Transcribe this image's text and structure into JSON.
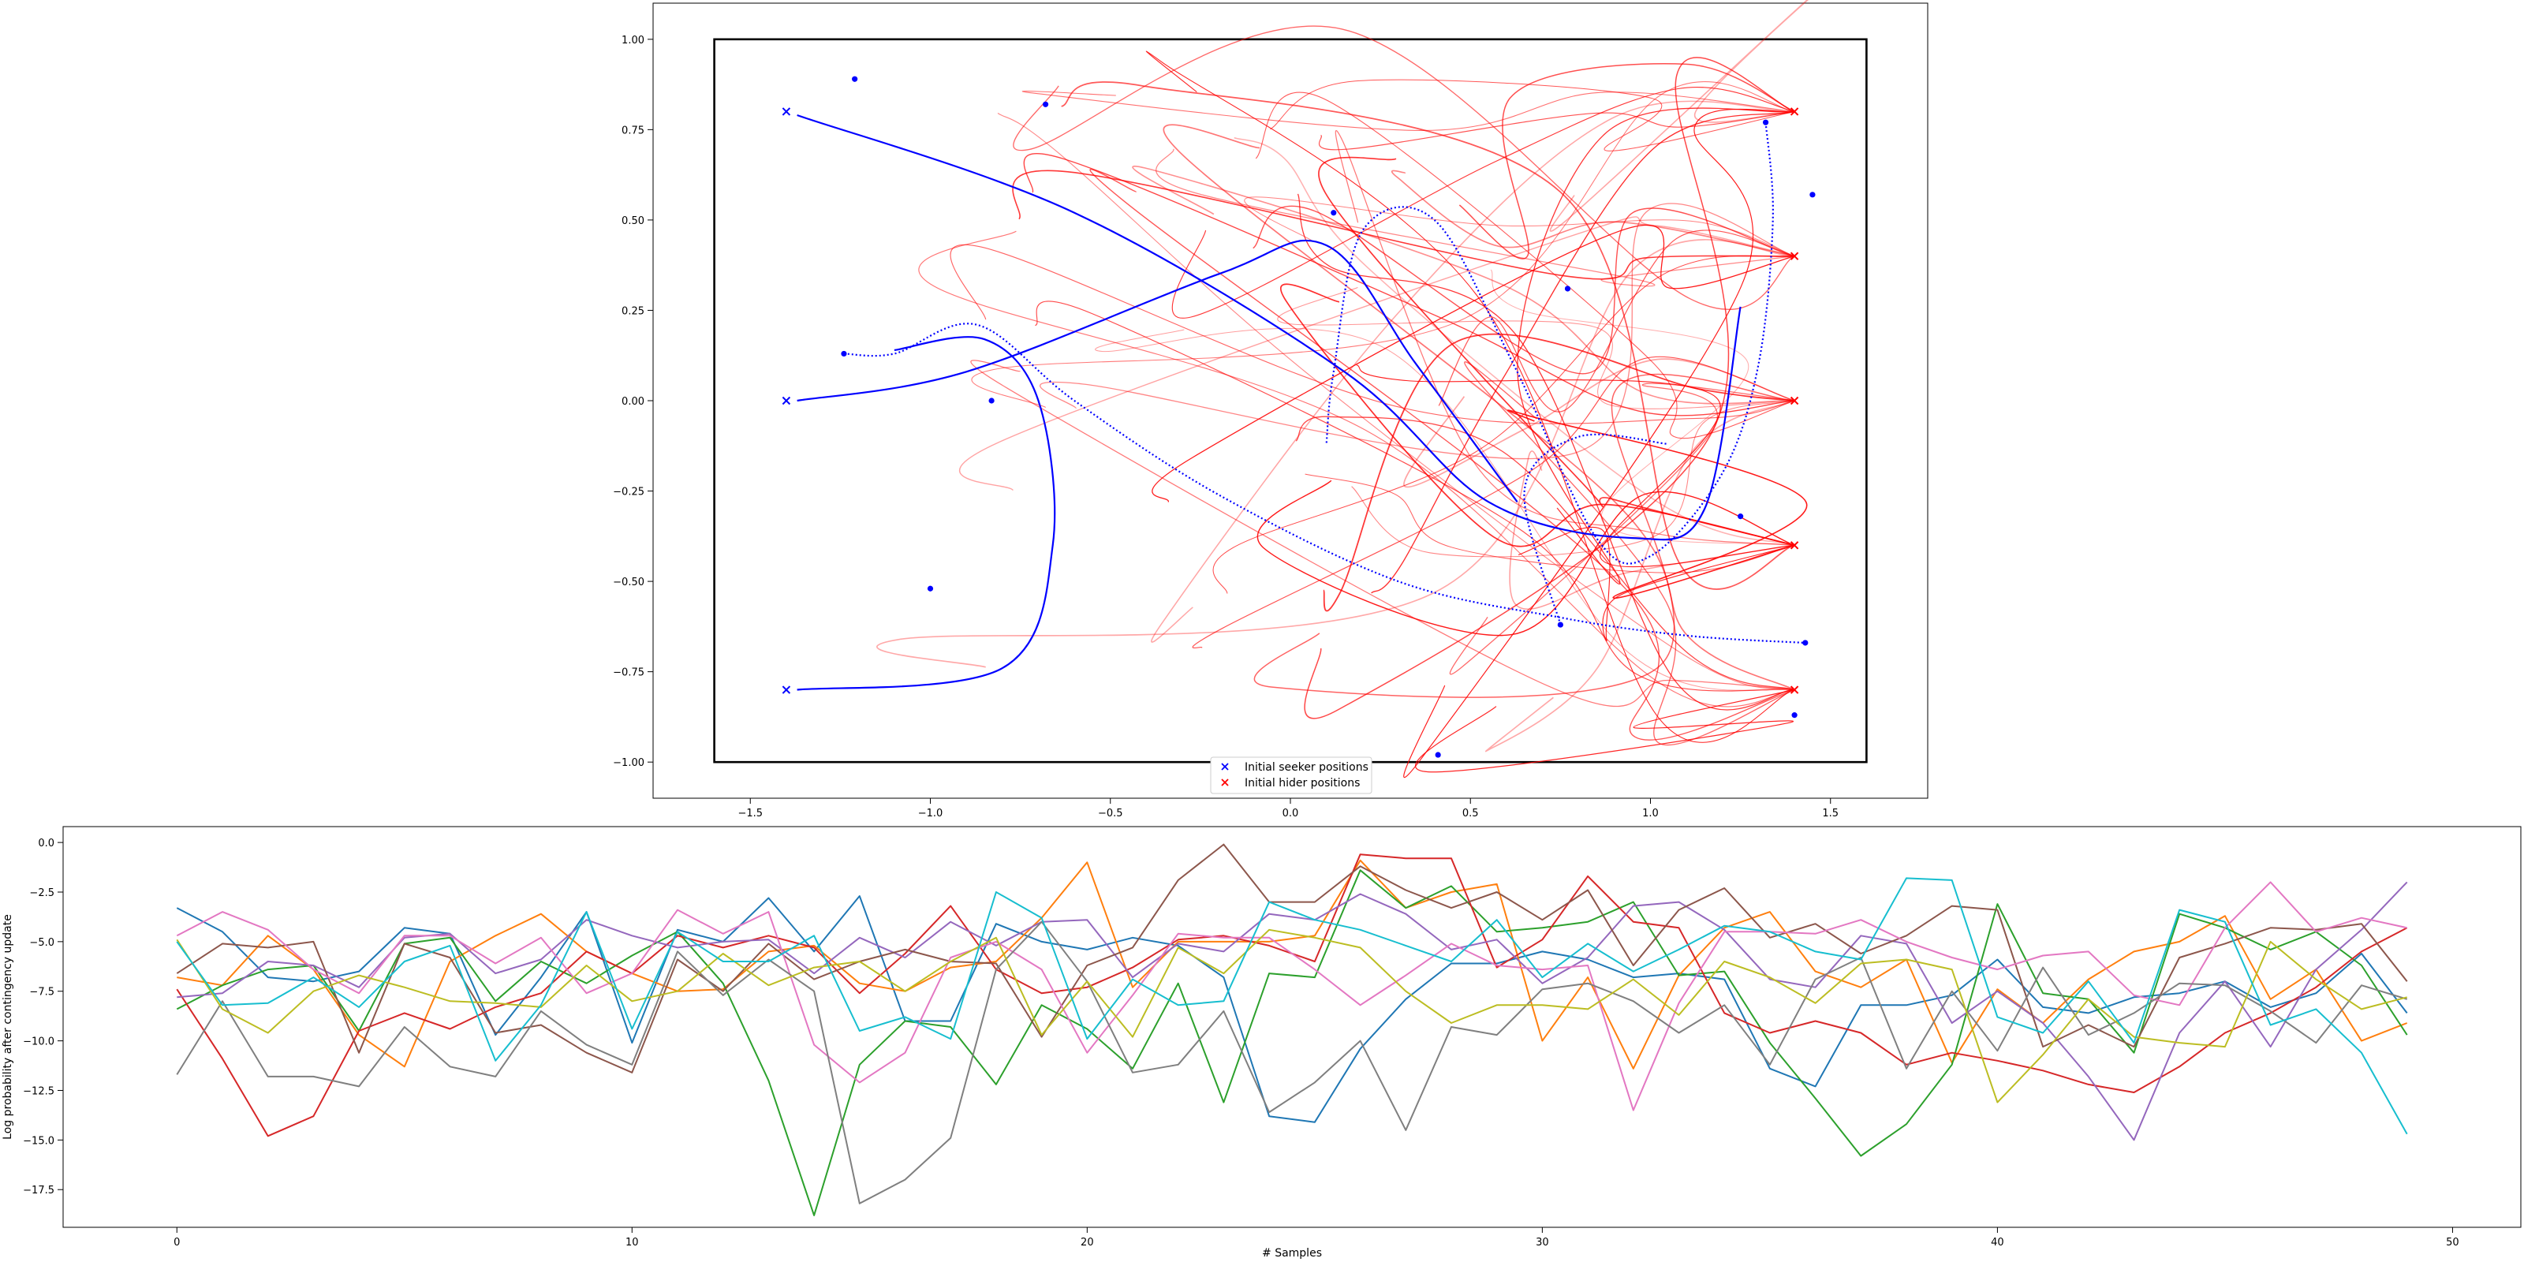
{
  "chart_data": [
    {
      "type": "scatter",
      "title": "",
      "xlabel": "",
      "ylabel": "",
      "xlim": [
        -1.77,
        1.77
      ],
      "ylim": [
        -1.1,
        1.1
      ],
      "xticks": [
        "−1.5",
        "−1.0",
        "−0.5",
        "0.0",
        "0.5",
        "1.0",
        "1.5"
      ],
      "xtick_values": [
        -1.5,
        -1.0,
        -0.5,
        0.0,
        0.5,
        1.0,
        1.5
      ],
      "yticks": [
        "1.00",
        "0.75",
        "0.50",
        "0.25",
        "0.00",
        "−0.25",
        "−0.50",
        "−0.75",
        "−1.00"
      ],
      "ytick_values": [
        1.0,
        0.75,
        0.5,
        0.25,
        0.0,
        -0.25,
        -0.5,
        -0.75,
        -1.0
      ],
      "boundary_box": {
        "x0": -1.6,
        "y0": -1.0,
        "x1": 1.6,
        "y1": 1.0
      },
      "legend": {
        "placement": "lower-center",
        "entries": [
          {
            "label": "Initial seeker positions",
            "color": "#0000ff",
            "marker": "x"
          },
          {
            "label": "Initial hider positions",
            "color": "#ff0000",
            "marker": "x"
          }
        ]
      },
      "seeker_color": "#0000ff",
      "hider_color": "#ff0000",
      "seeker_positions": [
        [
          -1.4,
          0.8
        ],
        [
          -1.4,
          0.0
        ],
        [
          -1.4,
          -0.8
        ]
      ],
      "hider_positions": [
        [
          1.4,
          0.8
        ],
        [
          1.4,
          0.4
        ],
        [
          1.4,
          0.0
        ],
        [
          1.4,
          -0.4
        ],
        [
          1.4,
          -0.8
        ]
      ],
      "target_dots": [
        [
          -1.21,
          0.89
        ],
        [
          -0.68,
          0.82
        ],
        [
          0.12,
          0.52
        ],
        [
          0.77,
          0.31
        ],
        [
          -1.24,
          0.13
        ],
        [
          -0.83,
          0.0
        ],
        [
          1.32,
          0.77
        ],
        [
          1.45,
          0.57
        ],
        [
          1.25,
          -0.32
        ],
        [
          -1.0,
          -0.52
        ],
        [
          0.75,
          -0.62
        ],
        [
          1.43,
          -0.67
        ],
        [
          1.4,
          -0.87
        ],
        [
          0.41,
          -0.98
        ]
      ],
      "seeker_paths_solid": [
        [
          [
            -1.37,
            0.79
          ],
          [
            -0.6,
            0.52
          ],
          [
            0.15,
            0.08
          ],
          [
            0.55,
            -0.28
          ],
          [
            0.95,
            -0.38
          ],
          [
            1.15,
            -0.3
          ],
          [
            1.25,
            0.26
          ]
        ],
        [
          [
            -1.37,
            0.0
          ],
          [
            -0.9,
            0.08
          ],
          [
            -0.2,
            0.35
          ],
          [
            0.1,
            0.43
          ],
          [
            0.35,
            0.1
          ],
          [
            0.63,
            -0.28
          ]
        ],
        [
          [
            -1.37,
            -0.8
          ],
          [
            -0.8,
            -0.74
          ],
          [
            -0.66,
            -0.4
          ],
          [
            -0.7,
            0.0
          ],
          [
            -0.85,
            0.17
          ],
          [
            -1.1,
            0.14
          ]
        ]
      ],
      "seeker_paths_dotted": [
        [
          [
            1.32,
            0.77
          ],
          [
            1.34,
            0.5
          ],
          [
            1.3,
            0.1
          ],
          [
            1.2,
            -0.2
          ],
          [
            1.0,
            -0.43
          ],
          [
            0.85,
            -0.38
          ],
          [
            0.62,
            0.1
          ],
          [
            0.4,
            0.5
          ],
          [
            0.2,
            0.47
          ],
          [
            0.12,
            0.08
          ],
          [
            0.1,
            -0.12
          ]
        ],
        [
          [
            -1.24,
            0.13
          ],
          [
            -1.1,
            0.13
          ],
          [
            -0.87,
            0.21
          ],
          [
            -0.6,
            0.0
          ],
          [
            -0.2,
            -0.26
          ],
          [
            0.3,
            -0.5
          ],
          [
            0.75,
            -0.6
          ],
          [
            1.1,
            -0.65
          ],
          [
            1.43,
            -0.67
          ]
        ],
        [
          [
            0.75,
            -0.62
          ],
          [
            0.65,
            -0.25
          ],
          [
            0.8,
            -0.1
          ],
          [
            1.05,
            -0.12
          ]
        ]
      ],
      "hider_path_count": 60
    },
    {
      "type": "line",
      "title": "",
      "xlabel": "# Samples",
      "ylabel": "Log probability after contingency update",
      "xlim": [
        -2.5,
        51.5
      ],
      "ylim": [
        -19.4,
        0.8
      ],
      "xticks": [
        "0",
        "10",
        "20",
        "30",
        "40",
        "50"
      ],
      "xtick_values": [
        0,
        10,
        20,
        30,
        40,
        50
      ],
      "yticks": [
        "0.0",
        "−2.5",
        "−5.0",
        "−7.5",
        "−10.0",
        "−12.5",
        "−15.0",
        "−17.5"
      ],
      "ytick_values": [
        0,
        -2.5,
        -5,
        -7.5,
        -10,
        -12.5,
        -15,
        -17.5
      ],
      "x": [
        0,
        1,
        2,
        3,
        4,
        5,
        6,
        7,
        8,
        9,
        10,
        11,
        12,
        13,
        14,
        15,
        16,
        17,
        18,
        19,
        20,
        21,
        22,
        23,
        24,
        25,
        26,
        27,
        28,
        29,
        30,
        31,
        32,
        33,
        34,
        35,
        36,
        37,
        38,
        39,
        40,
        41,
        42,
        43,
        44,
        45,
        46,
        47,
        48,
        49
      ],
      "series": [
        {
          "color": "#1f77b4",
          "values": [
            -3.3,
            -4.5,
            -6.8,
            -7.0,
            -6.5,
            -4.3,
            -4.6,
            -9.7,
            -6.8,
            -3.5,
            -10.1,
            -4.4,
            -5.0,
            -2.8,
            -5.5,
            -2.7,
            -9.0,
            -9.0,
            -4.1,
            -5.0,
            -5.4,
            -4.8,
            -5.2,
            -6.8,
            -13.8,
            -14.1,
            -10.4,
            -7.9,
            -6.1,
            -6.1,
            -5.5,
            -5.9,
            -6.8,
            -6.6,
            -6.9,
            -11.4,
            -12.3,
            -8.2,
            -8.2,
            -7.7,
            -5.9,
            -8.3,
            -8.6,
            -7.8,
            -7.6,
            -7.0,
            -8.3,
            -7.6,
            -5.6,
            -8.6
          ]
        },
        {
          "color": "#ff7f0e",
          "values": [
            -6.8,
            -7.2,
            -4.7,
            -6.4,
            -9.7,
            -11.3,
            -6.0,
            -4.7,
            -3.6,
            -5.5,
            -6.6,
            -7.5,
            -7.4,
            -5.5,
            -5.2,
            -7.1,
            -7.5,
            -6.3,
            -6.0,
            -3.8,
            -1.0,
            -7.3,
            -5.0,
            -5.0,
            -5.0,
            -4.7,
            -0.9,
            -3.3,
            -2.5,
            -2.1,
            -10.0,
            -6.8,
            -11.4,
            -6.7,
            -4.3,
            -3.5,
            -6.5,
            -7.3,
            -5.9,
            -11.1,
            -7.4,
            -9.1,
            -6.9,
            -5.5,
            -5.0,
            -3.7,
            -7.9,
            -6.4,
            -10.0,
            -9.1
          ]
        },
        {
          "color": "#2ca02c",
          "values": [
            -8.4,
            -7.2,
            -6.4,
            -6.2,
            -9.5,
            -5.1,
            -4.8,
            -8.0,
            -6.0,
            -7.1,
            -5.7,
            -4.5,
            -7.1,
            -12.0,
            -18.8,
            -11.2,
            -9.0,
            -9.3,
            -12.2,
            -8.2,
            -9.4,
            -11.4,
            -7.1,
            -13.1,
            -6.6,
            -6.8,
            -1.4,
            -3.3,
            -2.2,
            -4.5,
            -4.3,
            -4.0,
            -3.0,
            -6.7,
            -6.5,
            -10.1,
            -12.9,
            -15.8,
            -14.2,
            -11.2,
            -3.1,
            -7.6,
            -7.9,
            -10.6,
            -3.6,
            -4.3,
            -5.4,
            -4.5,
            -6.2,
            -9.7
          ]
        },
        {
          "color": "#d62728",
          "values": [
            -7.4,
            -10.9,
            -14.8,
            -13.8,
            -9.5,
            -8.6,
            -9.4,
            -8.3,
            -7.6,
            -5.5,
            -6.6,
            -4.7,
            -5.3,
            -4.7,
            -5.3,
            -7.6,
            -5.6,
            -3.2,
            -6.4,
            -7.6,
            -7.3,
            -6.3,
            -4.9,
            -4.7,
            -5.2,
            -6.0,
            -0.6,
            -0.8,
            -0.8,
            -6.3,
            -4.9,
            -1.7,
            -4.0,
            -4.3,
            -8.6,
            -9.6,
            -9.0,
            -9.6,
            -11.2,
            -10.6,
            -11.0,
            -11.5,
            -12.2,
            -12.6,
            -11.3,
            -9.6,
            -8.6,
            -7.3,
            -5.5,
            -4.3
          ]
        },
        {
          "color": "#9467bd",
          "values": [
            -7.8,
            -7.6,
            -6.0,
            -6.2,
            -7.3,
            -4.8,
            -4.6,
            -6.6,
            -5.9,
            -3.9,
            -4.7,
            -5.3,
            -5.0,
            -4.9,
            -6.6,
            -4.8,
            -5.8,
            -4.0,
            -5.2,
            -4.0,
            -3.9,
            -6.8,
            -5.1,
            -5.5,
            -3.6,
            -3.9,
            -2.6,
            -3.6,
            -5.4,
            -4.9,
            -7.1,
            -5.8,
            -3.2,
            -3.0,
            -4.4,
            -6.9,
            -7.3,
            -4.7,
            -5.1,
            -9.1,
            -7.5,
            -9.1,
            -11.8,
            -15.0,
            -9.6,
            -7.0,
            -10.3,
            -6.4,
            -4.4,
            -2.0
          ]
        },
        {
          "color": "#8c564b",
          "values": [
            -6.6,
            -5.1,
            -5.3,
            -5.0,
            -10.6,
            -5.1,
            -5.8,
            -9.6,
            -9.2,
            -10.6,
            -11.6,
            -5.9,
            -7.5,
            -5.1,
            -6.9,
            -6.0,
            -5.4,
            -6.0,
            -6.1,
            -9.8,
            -6.2,
            -5.3,
            -1.9,
            -0.1,
            -3.0,
            -3.0,
            -1.2,
            -2.4,
            -3.3,
            -2.5,
            -3.9,
            -2.4,
            -6.2,
            -3.4,
            -2.3,
            -4.8,
            -4.1,
            -5.6,
            -4.7,
            -3.2,
            -3.4,
            -10.3,
            -9.2,
            -10.3,
            -5.8,
            -5.1,
            -4.3,
            -4.4,
            -4.1,
            -7.0
          ]
        },
        {
          "color": "#e377c2",
          "values": [
            -4.7,
            -3.5,
            -4.4,
            -6.4,
            -7.6,
            -4.7,
            -4.7,
            -6.1,
            -4.8,
            -7.6,
            -6.6,
            -3.4,
            -4.6,
            -3.5,
            -10.2,
            -12.1,
            -10.6,
            -5.8,
            -5.0,
            -6.4,
            -10.6,
            -7.7,
            -4.6,
            -4.8,
            -4.8,
            -6.4,
            -8.2,
            -6.7,
            -5.1,
            -6.2,
            -6.4,
            -6.2,
            -13.5,
            -8.1,
            -4.5,
            -4.5,
            -4.6,
            -3.9,
            -5.0,
            -5.8,
            -6.4,
            -5.7,
            -5.5,
            -7.7,
            -8.2,
            -4.3,
            -2.0,
            -4.5,
            -3.8,
            -4.3
          ]
        },
        {
          "color": "#7f7f7f",
          "values": [
            -11.7,
            -8.0,
            -11.8,
            -11.8,
            -12.3,
            -9.3,
            -11.3,
            -11.8,
            -8.5,
            -10.2,
            -11.2,
            -5.5,
            -7.7,
            -5.9,
            -7.5,
            -18.2,
            -17.0,
            -14.9,
            -6.4,
            -4.0,
            -7.0,
            -11.6,
            -11.2,
            -8.5,
            -13.6,
            -12.1,
            -10.0,
            -14.5,
            -9.3,
            -9.7,
            -7.4,
            -7.1,
            -8.0,
            -9.6,
            -8.2,
            -11.2,
            -6.9,
            -5.8,
            -11.4,
            -7.5,
            -10.5,
            -6.3,
            -9.7,
            -8.6,
            -7.1,
            -7.2,
            -8.5,
            -10.1,
            -7.2,
            -7.9
          ]
        },
        {
          "color": "#bcbd22",
          "values": [
            -4.9,
            -8.4,
            -9.6,
            -7.5,
            -6.7,
            -7.3,
            -8.0,
            -8.1,
            -8.3,
            -6.2,
            -8.0,
            -7.5,
            -5.6,
            -7.2,
            -6.3,
            -6.0,
            -7.5,
            -6.0,
            -4.8,
            -9.7,
            -7.0,
            -9.8,
            -5.3,
            -6.6,
            -4.4,
            -4.8,
            -5.3,
            -7.5,
            -9.1,
            -8.2,
            -8.2,
            -8.4,
            -6.9,
            -8.7,
            -6.0,
            -6.8,
            -8.1,
            -6.1,
            -5.9,
            -6.4,
            -13.1,
            -10.7,
            -7.9,
            -9.8,
            -10.1,
            -10.3,
            -5.0,
            -6.9,
            -8.4,
            -7.8
          ]
        },
        {
          "color": "#17becf",
          "values": [
            -5.0,
            -8.2,
            -8.1,
            -6.8,
            -8.3,
            -6.0,
            -5.2,
            -11.0,
            -8.2,
            -3.5,
            -9.4,
            -4.5,
            -6.0,
            -6.0,
            -4.7,
            -9.5,
            -8.8,
            -9.9,
            -2.5,
            -3.8,
            -9.9,
            -6.9,
            -8.2,
            -8.0,
            -3.0,
            -3.9,
            -4.4,
            -5.2,
            -6.0,
            -3.9,
            -6.8,
            -5.1,
            -6.5,
            -5.4,
            -4.2,
            -4.5,
            -5.5,
            -5.9,
            -1.8,
            -1.9,
            -8.8,
            -9.6,
            -7.0,
            -10.1,
            -3.4,
            -4.0,
            -9.2,
            -8.4,
            -10.6,
            -14.7
          ]
        }
      ]
    }
  ]
}
